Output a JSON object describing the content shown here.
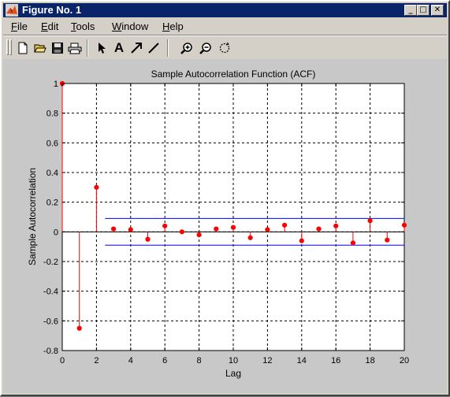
{
  "window": {
    "title": "Figure No. 1",
    "buttons": {
      "minimize": "_",
      "maximize": "□",
      "close": "✕"
    }
  },
  "menu": {
    "items": [
      {
        "key": "F",
        "rest": "ile"
      },
      {
        "key": "E",
        "rest": "dit"
      },
      {
        "key": "T",
        "rest": "ools"
      },
      {
        "key": "W",
        "rest": "indow"
      },
      {
        "key": "H",
        "rest": "elp"
      }
    ]
  },
  "toolbar": {
    "icons": [
      "new-file-icon",
      "open-folder-icon",
      "save-icon",
      "print-icon",
      "select-arrow-icon",
      "insert-text-icon",
      "insert-arrow-icon",
      "insert-line-icon",
      "zoom-in-icon",
      "zoom-out-icon",
      "rotate-3d-icon"
    ],
    "text_tool_glyph": "A"
  },
  "colors": {
    "stem": "#ff0000",
    "bounds": "#0000ff",
    "axes_bg": "#ffffff",
    "figure_bg": "#c8c8c8"
  },
  "chart_data": {
    "type": "stem",
    "title": "Sample Autocorrelation Function (ACF)",
    "xlabel": "Lag",
    "ylabel": "Sample Autocorrelation",
    "xlim": [
      0,
      20
    ],
    "ylim": [
      -0.8,
      1
    ],
    "xticks": [
      0,
      2,
      4,
      6,
      8,
      10,
      12,
      14,
      16,
      18,
      20
    ],
    "yticks": [
      -0.8,
      -0.6,
      -0.4,
      -0.2,
      0,
      0.2,
      0.4,
      0.6,
      0.8,
      1
    ],
    "ytick_labels": [
      "-0.8",
      "-0.6",
      "-0.4",
      "-0.2",
      "0",
      "0.2",
      "0.4",
      "0.6",
      "0.8",
      "1"
    ],
    "grid": true,
    "series": [
      {
        "lags": [
          0,
          1,
          2,
          3,
          4,
          5,
          6,
          7,
          8,
          9,
          10,
          11,
          12,
          13,
          14,
          15,
          16,
          17,
          18,
          19,
          20
        ],
        "values": [
          1.0,
          -0.65,
          0.3,
          0.02,
          0.015,
          -0.05,
          0.04,
          0.0,
          -0.02,
          0.02,
          0.03,
          -0.04,
          0.015,
          0.045,
          -0.06,
          0.02,
          0.04,
          -0.075,
          0.075,
          -0.055,
          0.045
        ]
      }
    ],
    "confidence_bounds": {
      "upper": 0.09,
      "lower": -0.09,
      "from_lag": 2.5,
      "to_lag": 20
    }
  }
}
